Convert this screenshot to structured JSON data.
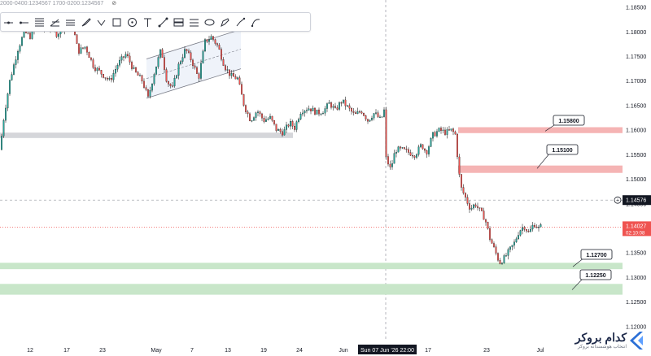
{
  "top_strip": {
    "text": "2000-0400:1234567 1700-0200:1234567",
    "eye_icon": "eye-crossed-icon"
  },
  "toolbar": {
    "tools": [
      {
        "name": "horizontal-line-icon"
      },
      {
        "name": "horizontal-ray-icon"
      },
      {
        "name": "fib-retracement-icon"
      },
      {
        "name": "trend-angle-icon"
      },
      {
        "name": "parallel-lines-icon"
      },
      {
        "name": "brush-icon"
      },
      {
        "name": "arrow-marker-icon"
      },
      {
        "name": "rectangle-icon"
      },
      {
        "name": "circle-icon"
      },
      {
        "name": "text-icon"
      },
      {
        "name": "trend-line-icon"
      },
      {
        "name": "long-position-icon"
      },
      {
        "name": "short-position-icon"
      },
      {
        "name": "ellipse-icon"
      },
      {
        "name": "highlighter-icon"
      },
      {
        "name": "path-icon"
      },
      {
        "name": "curve-icon"
      }
    ]
  },
  "colors": {
    "up": "#26a69a",
    "down": "#ef5350",
    "wick": "#000000",
    "resistance_zone": "#f5b4b4",
    "support_zone": "#c8e6c9",
    "gray_zone": "#d5d6da",
    "current_price": "#ef5350"
  },
  "chart_data": {
    "type": "candlestick",
    "y_ticks": [
      "1.18500",
      "1.18000",
      "1.17500",
      "1.17000",
      "1.16500",
      "1.16000",
      "1.15500",
      "1.15000",
      "1.14500",
      "1.14000",
      "1.13500",
      "1.13000",
      "1.12500",
      "1.12000"
    ],
    "x_ticks": [
      "12",
      "17",
      "23",
      "May",
      "7",
      "13",
      "19",
      "24",
      "Jun",
      "Sun 07 Jun '26",
      "22:00",
      "17",
      "23",
      "Jul"
    ],
    "ylim": [
      1.117,
      1.1865
    ],
    "current_price": "1.14027",
    "countdown": "02:10:08",
    "crosshair_price": "1.14576",
    "crosshair_time": "Sun 07 Jun '26  22:00",
    "levels": [
      {
        "label": "1.15800",
        "price": 1.158
      },
      {
        "label": "1.15100",
        "price": 1.151
      },
      {
        "label": "1.12700",
        "price": 1.127
      },
      {
        "label": "1.12250",
        "price": 1.1225
      }
    ],
    "anchors": [
      [
        0,
        1.156
      ],
      [
        5,
        1.163
      ],
      [
        12,
        1.17
      ],
      [
        22,
        1.1765
      ],
      [
        30,
        1.18
      ],
      [
        38,
        1.179
      ],
      [
        45,
        1.182
      ],
      [
        55,
        1.1805
      ],
      [
        62,
        1.181
      ],
      [
        70,
        1.1795
      ],
      [
        80,
        1.1815
      ],
      [
        88,
        1.1825
      ],
      [
        96,
        1.176
      ],
      [
        105,
        1.177
      ],
      [
        115,
        1.173
      ],
      [
        125,
        1.1715
      ],
      [
        135,
        1.17
      ],
      [
        145,
        1.1735
      ],
      [
        155,
        1.1755
      ],
      [
        165,
        1.172
      ],
      [
        175,
        1.17
      ],
      [
        182,
        1.1665
      ],
      [
        190,
        1.172
      ],
      [
        198,
        1.1765
      ],
      [
        205,
        1.17
      ],
      [
        212,
        1.1685
      ],
      [
        220,
        1.1735
      ],
      [
        228,
        1.1765
      ],
      [
        236,
        1.174
      ],
      [
        244,
        1.1705
      ],
      [
        252,
        1.178
      ],
      [
        260,
        1.179
      ],
      [
        268,
        1.177
      ],
      [
        276,
        1.173
      ],
      [
        284,
        1.171
      ],
      [
        292,
        1.1705
      ],
      [
        300,
        1.165
      ],
      [
        308,
        1.162
      ],
      [
        316,
        1.164
      ],
      [
        324,
        1.162
      ],
      [
        332,
        1.1625
      ],
      [
        340,
        1.16
      ],
      [
        348,
        1.1595
      ],
      [
        356,
        1.1615
      ],
      [
        362,
        1.1605
      ],
      [
        370,
        1.164
      ],
      [
        380,
        1.1645
      ],
      [
        390,
        1.1635
      ],
      [
        398,
        1.164
      ],
      [
        405,
        1.1655
      ],
      [
        412,
        1.164
      ],
      [
        420,
        1.166
      ],
      [
        428,
        1.1645
      ],
      [
        436,
        1.163
      ],
      [
        444,
        1.164
      ],
      [
        452,
        1.162
      ],
      [
        460,
        1.1635
      ],
      [
        468,
        1.162
      ],
      [
        472,
        1.164
      ],
      [
        474,
        1.1545
      ],
      [
        480,
        1.152
      ],
      [
        486,
        1.156
      ],
      [
        494,
        1.156
      ],
      [
        502,
        1.1555
      ],
      [
        510,
        1.155
      ],
      [
        518,
        1.157
      ],
      [
        524,
        1.1555
      ],
      [
        532,
        1.159
      ],
      [
        540,
        1.16
      ],
      [
        548,
        1.1595
      ],
      [
        555,
        1.16
      ],
      [
        560,
        1.159
      ],
      [
        563,
        1.153
      ],
      [
        566,
        1.1485
      ],
      [
        570,
        1.147
      ],
      [
        574,
        1.1455
      ],
      [
        578,
        1.144
      ],
      [
        584,
        1.145
      ],
      [
        590,
        1.1435
      ],
      [
        596,
        1.142
      ],
      [
        602,
        1.138
      ],
      [
        608,
        1.1355
      ],
      [
        614,
        1.133
      ],
      [
        620,
        1.134
      ],
      [
        626,
        1.1355
      ],
      [
        632,
        1.137
      ],
      [
        638,
        1.1395
      ],
      [
        644,
        1.1405
      ],
      [
        650,
        1.139
      ],
      [
        656,
        1.141
      ],
      [
        662,
        1.14
      ],
      [
        666,
        1.1405
      ]
    ]
  },
  "brand": {
    "name": "کدام بروکر",
    "tagline": "انتخاب هوشمندانه بروکر",
    "logo_icon": "chevron-left-logo-icon"
  }
}
